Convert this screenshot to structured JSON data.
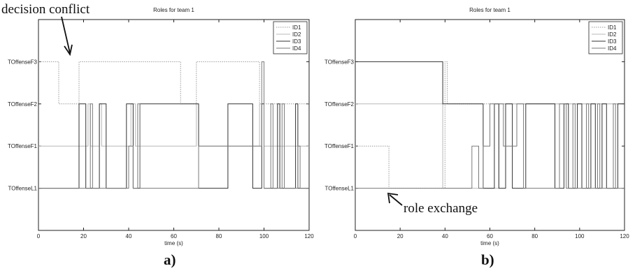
{
  "panels": {
    "a_label": "a)",
    "b_label": "b)"
  },
  "annotations": {
    "a": "decision conflict",
    "b": "role exchange"
  },
  "chart_data": [
    {
      "type": "line",
      "step": true,
      "title": "Roles for team 1",
      "xlabel": "time (s)",
      "ylabel": "",
      "xlim": [
        0,
        120
      ],
      "xticks": [
        "0",
        "20",
        "40",
        "60",
        "80",
        "100",
        "120"
      ],
      "categories": [
        "TOffenseL1",
        "TOffenseF1",
        "TOffenseF2",
        "TOffenseF3"
      ],
      "ylim": [
        -1,
        4
      ],
      "grid": false,
      "legend": "top-right",
      "series": [
        {
          "name": "ID1",
          "color": "#9a9a9a",
          "dash": "1.5,1.5",
          "points": [
            [
              0,
              3
            ],
            [
              9,
              3
            ],
            [
              9,
              2
            ],
            [
              18,
              2
            ],
            [
              18,
              3
            ],
            [
              63,
              3
            ],
            [
              63,
              2
            ],
            [
              70,
              2
            ],
            [
              70,
              3
            ],
            [
              98,
              3
            ],
            [
              98,
              2
            ],
            [
              120,
              2
            ]
          ]
        },
        {
          "name": "ID2",
          "color": "#b8b8b8",
          "dash": "",
          "points": [
            [
              0,
              1
            ],
            [
              22,
              1
            ],
            [
              22,
              2
            ],
            [
              23,
              2
            ],
            [
              23,
              1
            ],
            [
              27,
              1
            ],
            [
              27,
              2
            ],
            [
              28,
              2
            ],
            [
              28,
              1
            ],
            [
              41,
              1
            ],
            [
              41,
              2
            ],
            [
              43,
              2
            ],
            [
              43,
              1
            ],
            [
              70,
              1
            ],
            [
              70,
              2
            ],
            [
              71,
              2
            ],
            [
              71,
              1
            ],
            [
              98,
              1
            ],
            [
              98,
              2
            ],
            [
              100,
              2
            ],
            [
              100,
              1
            ],
            [
              120,
              1
            ]
          ]
        },
        {
          "name": "ID3",
          "color": "#333333",
          "dash": "",
          "points": [
            [
              0,
              0
            ],
            [
              18,
              0
            ],
            [
              18,
              2
            ],
            [
              21,
              2
            ],
            [
              21,
              0
            ],
            [
              27,
              0
            ],
            [
              27,
              2
            ],
            [
              30,
              2
            ],
            [
              30,
              0
            ],
            [
              39,
              0
            ],
            [
              39,
              2
            ],
            [
              42,
              2
            ],
            [
              42,
              0
            ],
            [
              45,
              0
            ],
            [
              45,
              2
            ],
            [
              71,
              2
            ],
            [
              71,
              0
            ],
            [
              84,
              0
            ],
            [
              84,
              2
            ],
            [
              95,
              2
            ],
            [
              95,
              0
            ],
            [
              99,
              0
            ],
            [
              99,
              2
            ],
            [
              100,
              2
            ],
            [
              100,
              0
            ],
            [
              106,
              0
            ],
            [
              106,
              2
            ],
            [
              107,
              2
            ],
            [
              107,
              0
            ],
            [
              114,
              0
            ],
            [
              114,
              2
            ],
            [
              115,
              2
            ],
            [
              115,
              0
            ],
            [
              120,
              0
            ]
          ]
        },
        {
          "name": "ID4",
          "color": "#7a7a7a",
          "dash": "",
          "points": [
            [
              0,
              0
            ],
            [
              23,
              0
            ],
            [
              23,
              2
            ],
            [
              24,
              2
            ],
            [
              24,
              0
            ],
            [
              40,
              0
            ],
            [
              40,
              1
            ],
            [
              42,
              1
            ],
            [
              42,
              0
            ],
            [
              44,
              0
            ],
            [
              44,
              2
            ],
            [
              45,
              2
            ],
            [
              45,
              0
            ],
            [
              71,
              0
            ],
            [
              71,
              1
            ],
            [
              85,
              1
            ],
            [
              85,
              1
            ],
            [
              99,
              1
            ],
            [
              99,
              3
            ],
            [
              100,
              3
            ],
            [
              100,
              0
            ],
            [
              103,
              0
            ],
            [
              103,
              2
            ],
            [
              104,
              2
            ],
            [
              104,
              0
            ],
            [
              108,
              0
            ],
            [
              108,
              2
            ],
            [
              109,
              2
            ],
            [
              109,
              0
            ],
            [
              115,
              0
            ],
            [
              115,
              1
            ],
            [
              116,
              1
            ],
            [
              116,
              0
            ],
            [
              120,
              0
            ]
          ]
        }
      ]
    },
    {
      "type": "line",
      "step": true,
      "title": "Roles for team 1",
      "xlabel": "time (s)",
      "ylabel": "",
      "xlim": [
        0,
        120
      ],
      "xticks": [
        "0",
        "20",
        "40",
        "60",
        "80",
        "100",
        "120"
      ],
      "categories": [
        "TOffenseL1",
        "TOffenseF1",
        "TOffenseF2",
        "TOffenseF3"
      ],
      "ylim": [
        -1,
        4
      ],
      "grid": false,
      "legend": "top-right",
      "series": [
        {
          "name": "ID1",
          "color": "#9a9a9a",
          "dash": "1.5,1.5",
          "points": [
            [
              0,
              1
            ],
            [
              15,
              1
            ],
            [
              15,
              0
            ],
            [
              40,
              0
            ],
            [
              40,
              3
            ],
            [
              41,
              3
            ],
            [
              41,
              2
            ],
            [
              120,
              2
            ]
          ]
        },
        {
          "name": "ID2",
          "color": "#b8b8b8",
          "dash": "",
          "points": [
            [
              0,
              2
            ],
            [
              39,
              2
            ],
            [
              39,
              0
            ],
            [
              64,
              0
            ],
            [
              64,
              2
            ],
            [
              120,
              2
            ]
          ]
        },
        {
          "name": "ID3",
          "color": "#333333",
          "dash": "",
          "points": [
            [
              0,
              3
            ],
            [
              39,
              3
            ],
            [
              39,
              2
            ],
            [
              57,
              2
            ],
            [
              57,
              0
            ],
            [
              62,
              0
            ],
            [
              62,
              2
            ],
            [
              64,
              2
            ],
            [
              64,
              0
            ],
            [
              67,
              0
            ],
            [
              67,
              2
            ],
            [
              70,
              2
            ],
            [
              70,
              0
            ],
            [
              76,
              0
            ],
            [
              76,
              2
            ],
            [
              89,
              2
            ],
            [
              89,
              0
            ],
            [
              93,
              0
            ],
            [
              93,
              2
            ],
            [
              95,
              2
            ],
            [
              95,
              0
            ],
            [
              99,
              0
            ],
            [
              99,
              2
            ],
            [
              101,
              2
            ],
            [
              101,
              0
            ],
            [
              105,
              0
            ],
            [
              105,
              2
            ],
            [
              107,
              2
            ],
            [
              107,
              0
            ],
            [
              110,
              0
            ],
            [
              110,
              2
            ],
            [
              112,
              2
            ],
            [
              112,
              0
            ],
            [
              117,
              0
            ],
            [
              117,
              2
            ],
            [
              120,
              2
            ]
          ]
        },
        {
          "name": "ID4",
          "color": "#7a7a7a",
          "dash": "",
          "points": [
            [
              0,
              0
            ],
            [
              52,
              0
            ],
            [
              52,
              1
            ],
            [
              55,
              1
            ],
            [
              55,
              0
            ],
            [
              57,
              0
            ],
            [
              57,
              1
            ],
            [
              60,
              1
            ],
            [
              60,
              2
            ],
            [
              66,
              2
            ],
            [
              66,
              1
            ],
            [
              72,
              1
            ],
            [
              72,
              2
            ],
            [
              75,
              2
            ],
            [
              75,
              0
            ],
            [
              91,
              0
            ],
            [
              91,
              2
            ],
            [
              94,
              2
            ],
            [
              94,
              0
            ],
            [
              97,
              0
            ],
            [
              97,
              2
            ],
            [
              98,
              2
            ],
            [
              98,
              0
            ],
            [
              103,
              0
            ],
            [
              103,
              2
            ],
            [
              104,
              2
            ],
            [
              104,
              0
            ],
            [
              108,
              0
            ],
            [
              108,
              2
            ],
            [
              109,
              2
            ],
            [
              109,
              0
            ],
            [
              115,
              0
            ],
            [
              115,
              2
            ],
            [
              116,
              2
            ],
            [
              116,
              0
            ],
            [
              120,
              0
            ]
          ]
        }
      ]
    }
  ]
}
